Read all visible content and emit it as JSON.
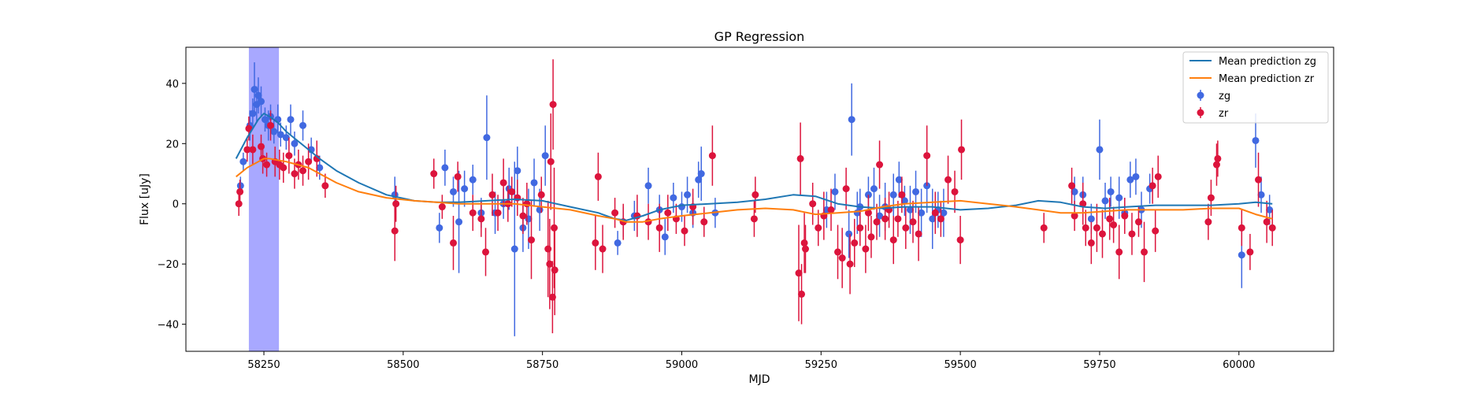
{
  "chart_data": {
    "type": "scatter",
    "title": "GP Regression",
    "xlabel": "MJD",
    "ylabel": "Flux [uJy]",
    "xlim": [
      58110,
      60170
    ],
    "ylim": [
      -49,
      52
    ],
    "xticks": [
      58250,
      58500,
      58750,
      59000,
      59250,
      59500,
      59750,
      60000
    ],
    "yticks": [
      -40,
      -20,
      0,
      20,
      40
    ],
    "grid": false,
    "legend_position": "top-right",
    "highlight_span": {
      "x": [
        58223,
        58277
      ],
      "color": "#a8a8ff"
    },
    "colors": {
      "zg_line": "#1f77b4",
      "zr_line": "#ff7f0e",
      "zg_points": "#4169e1",
      "zr_points": "#dc143c"
    },
    "series": [
      {
        "name": "Mean prediction zg",
        "kind": "line",
        "x": [
          58200,
          58220,
          58240,
          58250,
          58260,
          58275,
          58290,
          58310,
          58330,
          58350,
          58380,
          58420,
          58470,
          58520,
          58560,
          58600,
          58650,
          58700,
          58750,
          58800,
          58850,
          58880,
          58900,
          58930,
          58960,
          59000,
          59050,
          59100,
          59150,
          59200,
          59240,
          59280,
          59320,
          59360,
          59400,
          59450,
          59500,
          59550,
          59600,
          59640,
          59680,
          59720,
          59760,
          59800,
          59850,
          59900,
          59950,
          60000,
          60030,
          60060
        ],
        "y": [
          15,
          22,
          28,
          30,
          29,
          27,
          24,
          21,
          18,
          15,
          11,
          7,
          3,
          1,
          0.5,
          0.5,
          1,
          1.5,
          1,
          -1,
          -3,
          -5,
          -5.5,
          -4,
          -2,
          -0.5,
          0,
          0.5,
          1.5,
          3,
          2.5,
          0,
          -1,
          -1.5,
          -1,
          -1,
          -2,
          -1.5,
          -0.5,
          1,
          0.5,
          -1,
          -1.5,
          -1,
          -0.5,
          -0.5,
          -0.5,
          0,
          0.5,
          0
        ]
      },
      {
        "name": "Mean prediction zr",
        "kind": "line",
        "x": [
          58200,
          58220,
          58240,
          58250,
          58260,
          58275,
          58290,
          58310,
          58330,
          58350,
          58380,
          58420,
          58470,
          58520,
          58560,
          58600,
          58650,
          58700,
          58750,
          58800,
          58850,
          58880,
          58900,
          58930,
          58960,
          59000,
          59050,
          59100,
          59150,
          59200,
          59240,
          59280,
          59320,
          59360,
          59400,
          59450,
          59500,
          59550,
          59600,
          59640,
          59680,
          59720,
          59760,
          59800,
          59850,
          59900,
          59950,
          60000,
          60030,
          60060
        ],
        "y": [
          9,
          12,
          14,
          15,
          15,
          14.5,
          14,
          13,
          12,
          10,
          7,
          4,
          2,
          1,
          0.5,
          0,
          0,
          0,
          -1,
          -2,
          -4,
          -5,
          -6,
          -6,
          -5,
          -4,
          -3,
          -2,
          -1.5,
          -2,
          -3.5,
          -3,
          -2.5,
          -1,
          0,
          0.5,
          1,
          0,
          -1,
          -2,
          -3,
          -3,
          -2.5,
          -2,
          -2,
          -2,
          -1.5,
          -1.5,
          -3.5,
          -5
        ]
      },
      {
        "name": "zg",
        "kind": "errorbar",
        "points": [
          [
            58208,
            6,
            3
          ],
          [
            58213,
            14,
            3
          ],
          [
            58225,
            26,
            5
          ],
          [
            58230,
            30,
            5
          ],
          [
            58233,
            38,
            9
          ],
          [
            58237,
            33,
            6
          ],
          [
            58240,
            36,
            6
          ],
          [
            58245,
            34,
            5
          ],
          [
            58252,
            28,
            4
          ],
          [
            58258,
            26,
            5
          ],
          [
            58262,
            29,
            4
          ],
          [
            58268,
            24,
            4
          ],
          [
            58275,
            28,
            5
          ],
          [
            58280,
            23,
            4
          ],
          [
            58290,
            22,
            4
          ],
          [
            58298,
            28,
            5
          ],
          [
            58305,
            20,
            4
          ],
          [
            58320,
            26,
            5
          ],
          [
            58335,
            18,
            4
          ],
          [
            58350,
            12,
            4
          ],
          [
            58485,
            3,
            6
          ],
          [
            58565,
            -8,
            5
          ],
          [
            58575,
            12,
            6
          ],
          [
            58590,
            4,
            5
          ],
          [
            58600,
            -6,
            17
          ],
          [
            58610,
            5,
            6
          ],
          [
            58625,
            8,
            5
          ],
          [
            58640,
            -3,
            5
          ],
          [
            58650,
            22,
            14
          ],
          [
            58665,
            -3,
            7
          ],
          [
            58680,
            0,
            5
          ],
          [
            58690,
            5,
            7
          ],
          [
            58700,
            -15,
            29
          ],
          [
            58705,
            11,
            8
          ],
          [
            58715,
            -8,
            8
          ],
          [
            58725,
            -5,
            10
          ],
          [
            58735,
            7,
            8
          ],
          [
            58745,
            -2,
            7
          ],
          [
            58755,
            16,
            10
          ],
          [
            58885,
            -13,
            4
          ],
          [
            58895,
            -6,
            5
          ],
          [
            58915,
            -4,
            5
          ],
          [
            58940,
            6,
            6
          ],
          [
            58960,
            -2,
            5
          ],
          [
            58970,
            -11,
            6
          ],
          [
            58985,
            2,
            5
          ],
          [
            59000,
            -1,
            5
          ],
          [
            59010,
            3,
            6
          ],
          [
            59020,
            -3,
            5
          ],
          [
            59030,
            8,
            6
          ],
          [
            59035,
            10,
            9
          ],
          [
            59060,
            -3,
            5
          ],
          [
            59260,
            -2,
            6
          ],
          [
            59275,
            4,
            6
          ],
          [
            59300,
            -10,
            8
          ],
          [
            59305,
            28,
            12
          ],
          [
            59315,
            -3,
            7
          ],
          [
            59320,
            -1,
            6
          ],
          [
            59335,
            3,
            6
          ],
          [
            59345,
            5,
            7
          ],
          [
            59355,
            -4,
            7
          ],
          [
            59365,
            -1,
            8
          ],
          [
            59380,
            3,
            7
          ],
          [
            59390,
            8,
            6
          ],
          [
            59400,
            1,
            5
          ],
          [
            59410,
            -2,
            8
          ],
          [
            59420,
            4,
            7
          ],
          [
            59430,
            -3,
            8
          ],
          [
            59440,
            6,
            9
          ],
          [
            59450,
            -5,
            10
          ],
          [
            59460,
            -2,
            6
          ],
          [
            59470,
            -3,
            8
          ],
          [
            59705,
            4,
            5
          ],
          [
            59720,
            3,
            6
          ],
          [
            59735,
            -5,
            5
          ],
          [
            59750,
            18,
            10
          ],
          [
            59760,
            1,
            6
          ],
          [
            59770,
            4,
            5
          ],
          [
            59785,
            2,
            7
          ],
          [
            59795,
            -3,
            5
          ],
          [
            59805,
            8,
            6
          ],
          [
            59815,
            9,
            6
          ],
          [
            59825,
            -2,
            6
          ],
          [
            59840,
            5,
            5
          ],
          [
            60005,
            -17,
            11
          ],
          [
            60030,
            21,
            9
          ],
          [
            60040,
            3,
            6
          ],
          [
            60055,
            -2,
            5
          ]
        ]
      },
      {
        "name": "zr",
        "kind": "errorbar",
        "points": [
          [
            58205,
            0,
            4
          ],
          [
            58207,
            4,
            4
          ],
          [
            58220,
            18,
            4
          ],
          [
            58223,
            25,
            4
          ],
          [
            58230,
            18,
            5
          ],
          [
            58245,
            19,
            4
          ],
          [
            58248,
            15,
            5
          ],
          [
            58255,
            13,
            4
          ],
          [
            58262,
            26,
            5
          ],
          [
            58270,
            14,
            5
          ],
          [
            58278,
            13,
            5
          ],
          [
            58285,
            12,
            5
          ],
          [
            58295,
            16,
            6
          ],
          [
            58305,
            10,
            5
          ],
          [
            58312,
            13,
            5
          ],
          [
            58320,
            11,
            5
          ],
          [
            58330,
            14,
            6
          ],
          [
            58345,
            15,
            6
          ],
          [
            58360,
            6,
            4
          ],
          [
            58485,
            -9,
            10
          ],
          [
            58487,
            0,
            6
          ],
          [
            58555,
            10,
            5
          ],
          [
            58570,
            -1,
            4
          ],
          [
            58590,
            -13,
            9
          ],
          [
            58598,
            9,
            5
          ],
          [
            58625,
            -3,
            6
          ],
          [
            58640,
            -5,
            6
          ],
          [
            58648,
            -16,
            8
          ],
          [
            58660,
            3,
            7
          ],
          [
            58670,
            -3,
            6
          ],
          [
            58680,
            7,
            8
          ],
          [
            58688,
            0,
            6
          ],
          [
            58695,
            4,
            5
          ],
          [
            58705,
            2,
            6
          ],
          [
            58715,
            -4,
            6
          ],
          [
            58722,
            0,
            7
          ],
          [
            58730,
            -12,
            13
          ],
          [
            58748,
            3,
            6
          ],
          [
            58760,
            -15,
            16
          ],
          [
            58763,
            -20,
            15
          ],
          [
            58765,
            14,
            16
          ],
          [
            58768,
            -31,
            12
          ],
          [
            58769,
            33,
            15
          ],
          [
            58771,
            -8,
            20
          ],
          [
            58772,
            -22,
            15
          ],
          [
            58845,
            -13,
            9
          ],
          [
            58850,
            9,
            8
          ],
          [
            58858,
            -15,
            8
          ],
          [
            58880,
            -3,
            5
          ],
          [
            58895,
            -6,
            6
          ],
          [
            58920,
            -4,
            7
          ],
          [
            58940,
            -6,
            6
          ],
          [
            58960,
            -8,
            8
          ],
          [
            58975,
            -3,
            6
          ],
          [
            58990,
            -5,
            5
          ],
          [
            59005,
            -9,
            5
          ],
          [
            59020,
            -1,
            6
          ],
          [
            59040,
            -6,
            5
          ],
          [
            59055,
            16,
            10
          ],
          [
            59130,
            -5,
            6
          ],
          [
            59132,
            3,
            6
          ],
          [
            59210,
            -23,
            16
          ],
          [
            59213,
            15,
            12
          ],
          [
            59215,
            -30,
            10
          ],
          [
            59220,
            -13,
            10
          ],
          [
            59222,
            -15,
            8
          ],
          [
            59235,
            0,
            7
          ],
          [
            59245,
            -8,
            6
          ],
          [
            59255,
            -4,
            8
          ],
          [
            59268,
            -2,
            7
          ],
          [
            59280,
            -16,
            9
          ],
          [
            59288,
            -18,
            10
          ],
          [
            59295,
            5,
            7
          ],
          [
            59302,
            -20,
            10
          ],
          [
            59310,
            -13,
            8
          ],
          [
            59320,
            -8,
            6
          ],
          [
            59330,
            -15,
            8
          ],
          [
            59335,
            -3,
            6
          ],
          [
            59340,
            -11,
            7
          ],
          [
            59350,
            -6,
            6
          ],
          [
            59355,
            13,
            8
          ],
          [
            59365,
            -5,
            7
          ],
          [
            59372,
            -2,
            6
          ],
          [
            59380,
            -12,
            8
          ],
          [
            59388,
            -5,
            6
          ],
          [
            59395,
            3,
            6
          ],
          [
            59402,
            -8,
            7
          ],
          [
            59415,
            -6,
            7
          ],
          [
            59425,
            -10,
            9
          ],
          [
            59440,
            16,
            10
          ],
          [
            59455,
            -3,
            7
          ],
          [
            59465,
            -5,
            6
          ],
          [
            59478,
            8,
            8
          ],
          [
            59490,
            4,
            7
          ],
          [
            59500,
            -12,
            8
          ],
          [
            59502,
            18,
            10
          ],
          [
            59650,
            -8,
            5
          ],
          [
            59700,
            6,
            6
          ],
          [
            59705,
            -4,
            5
          ],
          [
            59720,
            0,
            7
          ],
          [
            59725,
            -8,
            6
          ],
          [
            59735,
            -13,
            7
          ],
          [
            59745,
            -8,
            8
          ],
          [
            59755,
            -10,
            8
          ],
          [
            59768,
            -5,
            7
          ],
          [
            59775,
            -7,
            6
          ],
          [
            59785,
            -16,
            9
          ],
          [
            59795,
            -4,
            6
          ],
          [
            59808,
            -10,
            7
          ],
          [
            59820,
            -6,
            5
          ],
          [
            59830,
            -16,
            10
          ],
          [
            59845,
            6,
            6
          ],
          [
            59850,
            -9,
            7
          ],
          [
            59855,
            9,
            7
          ],
          [
            59945,
            -6,
            6
          ],
          [
            59950,
            2,
            6
          ],
          [
            59960,
            13,
            7
          ],
          [
            59962,
            15,
            6
          ],
          [
            60005,
            -8,
            6
          ],
          [
            60020,
            -16,
            6
          ],
          [
            60035,
            8,
            9
          ],
          [
            60050,
            -6,
            7
          ],
          [
            60060,
            -8,
            6
          ]
        ]
      }
    ]
  }
}
